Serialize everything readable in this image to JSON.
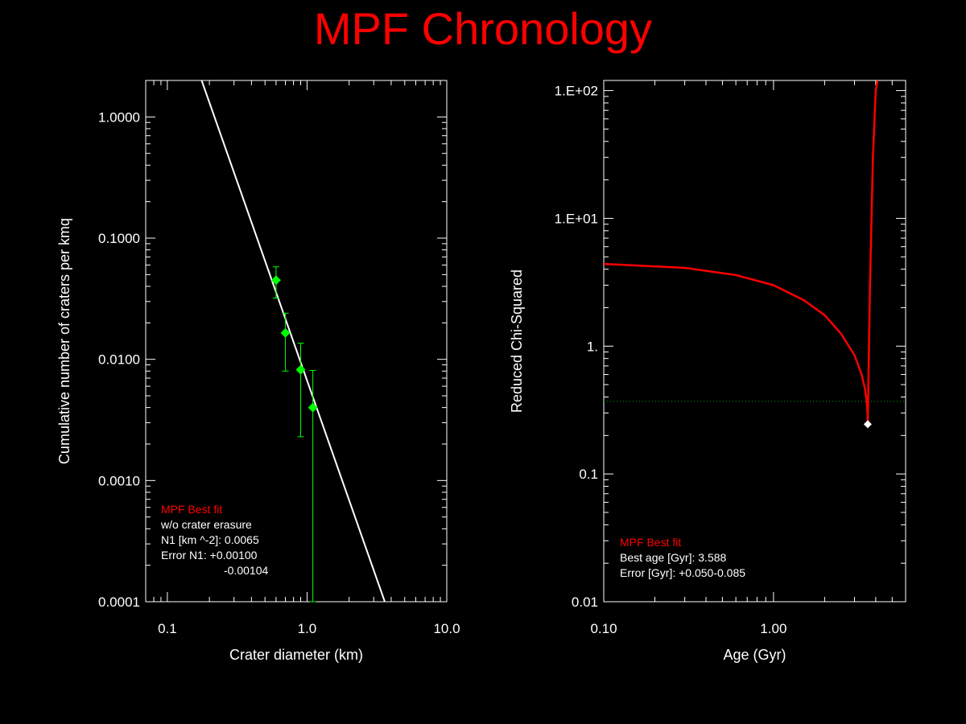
{
  "title": "MPF Chronology",
  "colors": {
    "title": "#ff0000",
    "frame": "#ffffff",
    "points": "#00ff00",
    "fit": "#ffffff",
    "curve": "#ff0000",
    "threshold": "#00aa00",
    "marker": "#ffffff"
  },
  "chart_data": [
    {
      "type": "scatter",
      "xscale": "log",
      "yscale": "log",
      "xlim": [
        0.07,
        10.0
      ],
      "ylim": [
        0.0001,
        2.0
      ],
      "xticks": [
        0.1,
        1.0,
        10.0
      ],
      "xtick_labels": [
        "0.1",
        "1.0",
        "10.0"
      ],
      "yticks": [
        0.0001,
        0.001,
        0.01,
        0.1,
        1.0
      ],
      "ytick_labels": [
        "0.0001",
        "0.0010",
        "0.0100",
        "0.1000",
        "1.0000"
      ],
      "xlabel": "Crater diameter (km)",
      "ylabel": "Cumulative number of craters per kmq",
      "points": [
        {
          "x": 0.6,
          "y": 0.045,
          "ylow": 0.032,
          "yhigh": 0.058
        },
        {
          "x": 0.7,
          "y": 0.0165,
          "ylow": 0.008,
          "yhigh": 0.024
        },
        {
          "x": 0.9,
          "y": 0.0082,
          "ylow": 0.0023,
          "yhigh": 0.0136
        },
        {
          "x": 1.1,
          "y": 0.004,
          "ylow": 0.0001,
          "yhigh": 0.0081
        }
      ],
      "fit_line": {
        "x": [
          0.176,
          3.6
        ],
        "y": [
          2.0,
          0.0001
        ]
      },
      "grid": false,
      "legend": [
        "MPF Best fit",
        "w/o crater erasure",
        "N1 [km ^-2]: 0.0065",
        "Error N1: +0.00100",
        "-0.00104"
      ]
    },
    {
      "type": "line",
      "xscale": "log",
      "yscale": "log",
      "xlim": [
        0.1,
        6.0
      ],
      "ylim": [
        0.01,
        120
      ],
      "xticks": [
        0.1,
        1.0
      ],
      "xtick_labels": [
        "0.10",
        "1.00"
      ],
      "yticks": [
        0.01,
        0.1,
        1,
        10,
        100
      ],
      "ytick_labels": [
        "0.01",
        "0.1",
        "1.",
        "1.E+01",
        "1.E+02"
      ],
      "xlabel": "Age (Gyr)",
      "ylabel": "Reduced Chi-Squared",
      "series": [
        {
          "x": [
            0.1,
            0.3,
            0.6,
            1.0,
            1.5,
            2.0,
            2.5,
            3.0,
            3.3,
            3.45,
            3.53,
            3.58,
            3.588,
            3.62,
            3.7,
            3.85,
            4.0,
            4.1
          ],
          "values": [
            4.4,
            4.1,
            3.6,
            3.0,
            2.3,
            1.75,
            1.25,
            0.85,
            0.6,
            0.47,
            0.38,
            0.3,
            0.245,
            0.5,
            3.0,
            30,
            100,
            120
          ]
        }
      ],
      "threshold": 0.37,
      "best": {
        "x": 3.588,
        "y": 0.245
      },
      "grid": false,
      "legend": [
        "MPF Best fit",
        "Best age [Gyr]: 3.588",
        "Error [Gyr]: +0.050-0.085"
      ]
    }
  ]
}
